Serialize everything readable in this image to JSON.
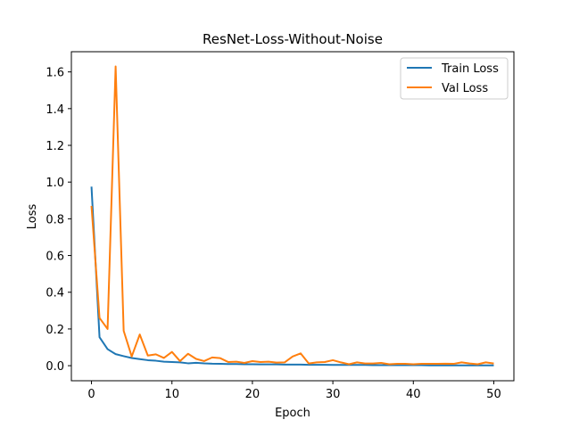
{
  "chart_data": {
    "type": "line",
    "title": "ResNet-Loss-Without-Noise",
    "xlabel": "Epoch",
    "ylabel": "Loss",
    "xlim": [
      -2.5,
      52.5
    ],
    "ylim": [
      -0.082,
      1.71
    ],
    "xticks": [
      0,
      10,
      20,
      30,
      40,
      50
    ],
    "yticks": [
      0.0,
      0.2,
      0.4,
      0.6,
      0.8,
      1.0,
      1.2,
      1.4,
      1.6
    ],
    "ytick_labels": [
      "0.0",
      "0.2",
      "0.4",
      "0.6",
      "0.8",
      "1.0",
      "1.2",
      "1.4",
      "1.6"
    ],
    "grid": false,
    "legend_position": "upper right",
    "x": [
      0,
      1,
      2,
      3,
      4,
      5,
      6,
      7,
      8,
      9,
      10,
      11,
      12,
      13,
      14,
      15,
      16,
      17,
      18,
      19,
      20,
      21,
      22,
      23,
      24,
      25,
      26,
      27,
      28,
      29,
      30,
      31,
      32,
      33,
      34,
      35,
      36,
      37,
      38,
      39,
      40,
      41,
      42,
      43,
      44,
      45,
      46,
      47,
      48,
      49,
      50
    ],
    "series": [
      {
        "name": "Train Loss",
        "color": "#1f77b4",
        "values": [
          0.975,
          0.155,
          0.09,
          0.063,
          0.052,
          0.042,
          0.036,
          0.03,
          0.027,
          0.022,
          0.02,
          0.018,
          0.013,
          0.016,
          0.013,
          0.011,
          0.01,
          0.009,
          0.009,
          0.008,
          0.008,
          0.007,
          0.007,
          0.007,
          0.006,
          0.006,
          0.006,
          0.005,
          0.005,
          0.005,
          0.004,
          0.004,
          0.004,
          0.004,
          0.004,
          0.003,
          0.003,
          0.003,
          0.003,
          0.003,
          0.003,
          0.003,
          0.002,
          0.002,
          0.002,
          0.002,
          0.002,
          0.002,
          0.002,
          0.002,
          0.002
        ]
      },
      {
        "name": "Val Loss",
        "color": "#ff7f0e",
        "values": [
          0.87,
          0.26,
          0.2,
          1.63,
          0.19,
          0.05,
          0.17,
          0.055,
          0.062,
          0.042,
          0.075,
          0.025,
          0.065,
          0.037,
          0.025,
          0.045,
          0.041,
          0.02,
          0.022,
          0.015,
          0.025,
          0.02,
          0.022,
          0.017,
          0.018,
          0.05,
          0.067,
          0.012,
          0.018,
          0.02,
          0.03,
          0.018,
          0.008,
          0.018,
          0.012,
          0.012,
          0.015,
          0.008,
          0.01,
          0.01,
          0.008,
          0.01,
          0.01,
          0.01,
          0.011,
          0.01,
          0.018,
          0.012,
          0.008,
          0.018,
          0.012
        ]
      }
    ]
  }
}
